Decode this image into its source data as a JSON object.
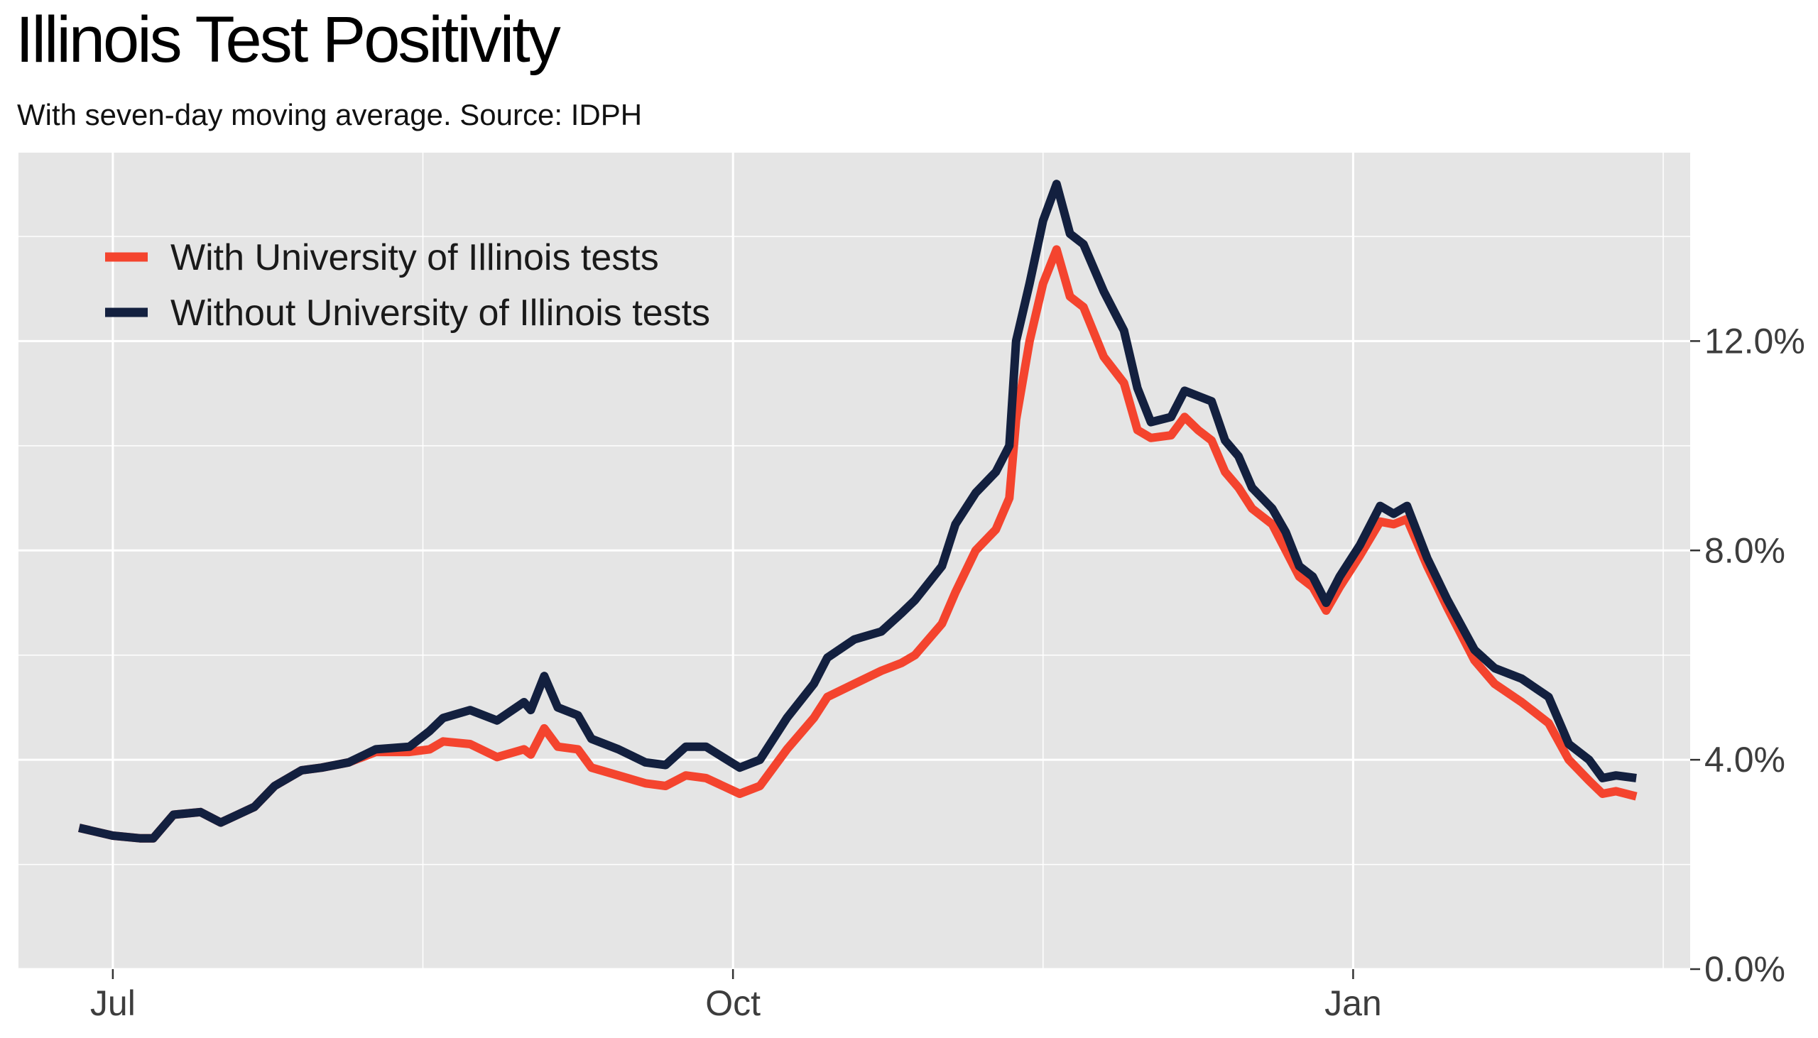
{
  "title": "Illinois Test Positivity",
  "subtitle": "With seven-day moving average. Source: IDPH",
  "colors": {
    "with": "#f4442e",
    "without": "#13203f",
    "panel": "#e5e5e5",
    "grid": "#ffffff"
  },
  "chart_data": {
    "type": "line",
    "title": "Illinois Test Positivity",
    "subtitle": "With seven-day moving average. Source: IDPH",
    "xlabel": "",
    "ylabel": "",
    "x_ticks": [
      {
        "date": "2020-07-01",
        "label": "Jul"
      },
      {
        "date": "2020-10-01",
        "label": "Oct"
      },
      {
        "date": "2021-01-01",
        "label": "Jan"
      }
    ],
    "y_ticks": [
      {
        "value": 0,
        "label": "0.0%"
      },
      {
        "value": 4,
        "label": "4.0%"
      },
      {
        "value": 8,
        "label": "8.0%"
      },
      {
        "value": 12,
        "label": "12.0%"
      }
    ],
    "xlim": [
      "2020-06-17",
      "2021-02-20"
    ],
    "ylim": [
      0,
      15.6
    ],
    "grid": true,
    "legend_position": "top-left",
    "series": [
      {
        "name": "With University of Illinois tests",
        "color": "#f4442e",
        "points": [
          [
            "2020-06-26",
            2.7
          ],
          [
            "2020-07-01",
            2.55
          ],
          [
            "2020-07-05",
            2.5
          ],
          [
            "2020-07-07",
            2.5
          ],
          [
            "2020-07-10",
            2.95
          ],
          [
            "2020-07-14",
            3.0
          ],
          [
            "2020-07-17",
            2.8
          ],
          [
            "2020-07-22",
            3.1
          ],
          [
            "2020-07-25",
            3.5
          ],
          [
            "2020-07-29",
            3.8
          ],
          [
            "2020-08-01",
            3.85
          ],
          [
            "2020-08-05",
            3.95
          ],
          [
            "2020-08-09",
            4.15
          ],
          [
            "2020-08-14",
            4.15
          ],
          [
            "2020-08-17",
            4.2
          ],
          [
            "2020-08-19",
            4.35
          ],
          [
            "2020-08-23",
            4.3
          ],
          [
            "2020-08-27",
            4.05
          ],
          [
            "2020-08-31",
            4.2
          ],
          [
            "2020-09-01",
            4.1
          ],
          [
            "2020-09-03",
            4.6
          ],
          [
            "2020-09-05",
            4.25
          ],
          [
            "2020-09-08",
            4.2
          ],
          [
            "2020-09-10",
            3.85
          ],
          [
            "2020-09-14",
            3.7
          ],
          [
            "2020-09-18",
            3.55
          ],
          [
            "2020-09-21",
            3.5
          ],
          [
            "2020-09-24",
            3.7
          ],
          [
            "2020-09-27",
            3.65
          ],
          [
            "2020-10-02",
            3.35
          ],
          [
            "2020-10-05",
            3.5
          ],
          [
            "2020-10-09",
            4.2
          ],
          [
            "2020-10-13",
            4.8
          ],
          [
            "2020-10-15",
            5.2
          ],
          [
            "2020-10-19",
            5.45
          ],
          [
            "2020-10-23",
            5.7
          ],
          [
            "2020-10-26",
            5.85
          ],
          [
            "2020-10-28",
            6.0
          ],
          [
            "2020-11-01",
            6.6
          ],
          [
            "2020-11-03",
            7.2
          ],
          [
            "2020-11-06",
            8.0
          ],
          [
            "2020-11-09",
            8.4
          ],
          [
            "2020-11-11",
            9.0
          ],
          [
            "2020-11-12",
            10.5
          ],
          [
            "2020-11-14",
            12.0
          ],
          [
            "2020-11-16",
            13.1
          ],
          [
            "2020-11-18",
            13.75
          ],
          [
            "2020-11-20",
            12.85
          ],
          [
            "2020-11-22",
            12.65
          ],
          [
            "2020-11-25",
            11.7
          ],
          [
            "2020-11-28",
            11.2
          ],
          [
            "2020-11-30",
            10.3
          ],
          [
            "2020-12-02",
            10.15
          ],
          [
            "2020-12-05",
            10.2
          ],
          [
            "2020-12-07",
            10.55
          ],
          [
            "2020-12-09",
            10.3
          ],
          [
            "2020-12-11",
            10.1
          ],
          [
            "2020-12-13",
            9.5
          ],
          [
            "2020-12-15",
            9.2
          ],
          [
            "2020-12-17",
            8.8
          ],
          [
            "2020-12-20",
            8.5
          ],
          [
            "2020-12-22",
            8.0
          ],
          [
            "2020-12-24",
            7.5
          ],
          [
            "2020-12-26",
            7.3
          ],
          [
            "2020-12-28",
            6.85
          ],
          [
            "2020-12-30",
            7.3
          ],
          [
            "2021-01-02",
            7.9
          ],
          [
            "2021-01-05",
            8.55
          ],
          [
            "2021-01-07",
            8.5
          ],
          [
            "2021-01-09",
            8.6
          ],
          [
            "2021-01-12",
            7.7
          ],
          [
            "2021-01-15",
            6.9
          ],
          [
            "2021-01-19",
            5.9
          ],
          [
            "2021-01-22",
            5.45
          ],
          [
            "2021-01-26",
            5.1
          ],
          [
            "2021-01-30",
            4.7
          ],
          [
            "2021-02-02",
            4.0
          ],
          [
            "2021-02-05",
            3.6
          ],
          [
            "2021-02-07",
            3.35
          ],
          [
            "2021-02-09",
            3.4
          ],
          [
            "2021-02-12",
            3.3
          ]
        ]
      },
      {
        "name": "Without University of Illinois tests",
        "color": "#13203f",
        "points": [
          [
            "2020-06-26",
            2.7
          ],
          [
            "2020-07-01",
            2.55
          ],
          [
            "2020-07-05",
            2.5
          ],
          [
            "2020-07-07",
            2.5
          ],
          [
            "2020-07-10",
            2.95
          ],
          [
            "2020-07-14",
            3.0
          ],
          [
            "2020-07-17",
            2.8
          ],
          [
            "2020-07-22",
            3.1
          ],
          [
            "2020-07-25",
            3.5
          ],
          [
            "2020-07-29",
            3.8
          ],
          [
            "2020-08-01",
            3.85
          ],
          [
            "2020-08-05",
            3.95
          ],
          [
            "2020-08-09",
            4.2
          ],
          [
            "2020-08-14",
            4.25
          ],
          [
            "2020-08-17",
            4.55
          ],
          [
            "2020-08-19",
            4.8
          ],
          [
            "2020-08-23",
            4.95
          ],
          [
            "2020-08-27",
            4.75
          ],
          [
            "2020-08-31",
            5.1
          ],
          [
            "2020-09-01",
            4.95
          ],
          [
            "2020-09-03",
            5.6
          ],
          [
            "2020-09-05",
            5.0
          ],
          [
            "2020-09-08",
            4.85
          ],
          [
            "2020-09-10",
            4.4
          ],
          [
            "2020-09-14",
            4.2
          ],
          [
            "2020-09-18",
            3.95
          ],
          [
            "2020-09-21",
            3.9
          ],
          [
            "2020-09-24",
            4.25
          ],
          [
            "2020-09-27",
            4.25
          ],
          [
            "2020-10-02",
            3.85
          ],
          [
            "2020-10-05",
            4.0
          ],
          [
            "2020-10-09",
            4.8
          ],
          [
            "2020-10-13",
            5.45
          ],
          [
            "2020-10-15",
            5.95
          ],
          [
            "2020-10-19",
            6.3
          ],
          [
            "2020-10-23",
            6.45
          ],
          [
            "2020-10-26",
            6.8
          ],
          [
            "2020-10-28",
            7.05
          ],
          [
            "2020-11-01",
            7.7
          ],
          [
            "2020-11-03",
            8.5
          ],
          [
            "2020-11-06",
            9.1
          ],
          [
            "2020-11-09",
            9.5
          ],
          [
            "2020-11-11",
            10.0
          ],
          [
            "2020-11-12",
            12.0
          ],
          [
            "2020-11-14",
            13.1
          ],
          [
            "2020-11-16",
            14.3
          ],
          [
            "2020-11-18",
            15.0
          ],
          [
            "2020-11-20",
            14.05
          ],
          [
            "2020-11-22",
            13.85
          ],
          [
            "2020-11-25",
            12.95
          ],
          [
            "2020-11-28",
            12.2
          ],
          [
            "2020-11-30",
            11.1
          ],
          [
            "2020-12-02",
            10.45
          ],
          [
            "2020-12-05",
            10.55
          ],
          [
            "2020-12-07",
            11.05
          ],
          [
            "2020-12-09",
            10.95
          ],
          [
            "2020-12-11",
            10.85
          ],
          [
            "2020-12-13",
            10.1
          ],
          [
            "2020-12-15",
            9.8
          ],
          [
            "2020-12-17",
            9.2
          ],
          [
            "2020-12-20",
            8.8
          ],
          [
            "2020-12-22",
            8.35
          ],
          [
            "2020-12-24",
            7.7
          ],
          [
            "2020-12-26",
            7.5
          ],
          [
            "2020-12-28",
            7.0
          ],
          [
            "2020-12-30",
            7.5
          ],
          [
            "2021-01-02",
            8.1
          ],
          [
            "2021-01-05",
            8.85
          ],
          [
            "2021-01-07",
            8.7
          ],
          [
            "2021-01-09",
            8.85
          ],
          [
            "2021-01-12",
            7.85
          ],
          [
            "2021-01-15",
            7.05
          ],
          [
            "2021-01-19",
            6.1
          ],
          [
            "2021-01-22",
            5.75
          ],
          [
            "2021-01-26",
            5.55
          ],
          [
            "2021-01-30",
            5.2
          ],
          [
            "2021-02-02",
            4.3
          ],
          [
            "2021-02-05",
            4.0
          ],
          [
            "2021-02-07",
            3.65
          ],
          [
            "2021-02-09",
            3.7
          ],
          [
            "2021-02-12",
            3.65
          ]
        ]
      }
    ]
  }
}
